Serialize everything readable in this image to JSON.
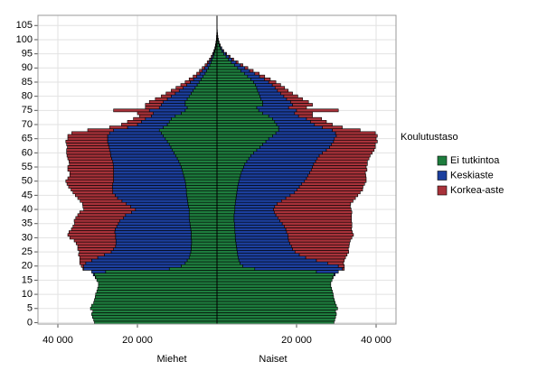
{
  "chart_data": {
    "type": "population_pyramid",
    "sides": {
      "left": "Miehet",
      "right": "Naiset"
    },
    "legend_title": "Koulutustaso",
    "legend": "right",
    "grid": true,
    "y": [
      0,
      1,
      2,
      3,
      4,
      5,
      6,
      7,
      8,
      9,
      10,
      11,
      12,
      13,
      14,
      15,
      16,
      17,
      18,
      19,
      20,
      21,
      22,
      23,
      24,
      25,
      26,
      27,
      28,
      29,
      30,
      31,
      32,
      33,
      34,
      35,
      36,
      37,
      38,
      39,
      40,
      41,
      42,
      43,
      44,
      45,
      46,
      47,
      48,
      49,
      50,
      51,
      52,
      53,
      54,
      55,
      56,
      57,
      58,
      59,
      60,
      61,
      62,
      63,
      64,
      65,
      66,
      67,
      68,
      69,
      70,
      71,
      72,
      73,
      74,
      75,
      76,
      77,
      78,
      79,
      80,
      81,
      82,
      83,
      84,
      85,
      86,
      87,
      88,
      89,
      90,
      91,
      92,
      93,
      94,
      95,
      96,
      97,
      98,
      99,
      100,
      101,
      102,
      103,
      104
    ],
    "ylim": [
      -0.5,
      108.6
    ],
    "yticks": [
      0,
      5,
      10,
      15,
      20,
      25,
      30,
      35,
      40,
      45,
      50,
      55,
      60,
      65,
      70,
      75,
      80,
      85,
      90,
      95,
      100,
      105
    ],
    "xlim": [
      -45000,
      45000
    ],
    "xticks": [
      {
        "value": -40000,
        "label": "40 000"
      },
      {
        "value": -20000,
        "label": "20 000"
      },
      {
        "value": 20000,
        "label": "20 000"
      },
      {
        "value": 40000,
        "label": "40 000"
      }
    ],
    "series": [
      {
        "name": "Ei tutkintoa",
        "color": "#1e7d3e",
        "left": [
          30800,
          31000,
          31300,
          31500,
          31200,
          31800,
          31500,
          31000,
          30800,
          30600,
          30500,
          30200,
          30000,
          29800,
          29800,
          30200,
          30500,
          30800,
          28000,
          12000,
          9000,
          8000,
          7500,
          7000,
          6800,
          6600,
          6500,
          6500,
          6400,
          6400,
          6500,
          6500,
          6500,
          6600,
          6700,
          6800,
          6900,
          7000,
          7000,
          7000,
          7000,
          7200,
          7300,
          7400,
          7500,
          7600,
          7700,
          7700,
          7800,
          7900,
          8000,
          8200,
          8400,
          8600,
          8800,
          9000,
          9300,
          9600,
          10000,
          10400,
          10800,
          11200,
          11600,
          12000,
          12500,
          13000,
          13500,
          14000,
          14500,
          13500,
          12500,
          12000,
          11500,
          10500,
          9000,
          8000,
          7500,
          8000,
          8000,
          7500,
          7000,
          6500,
          6000,
          5500,
          5000,
          4500,
          4000,
          3500,
          3000,
          2600,
          2200,
          1800,
          1500,
          1200,
          900,
          700,
          500,
          350,
          250,
          170,
          110,
          70,
          45,
          25,
          15
        ],
        "right": [
          29400,
          29600,
          29800,
          30000,
          29800,
          30300,
          30000,
          29700,
          29500,
          29300,
          29200,
          29000,
          28800,
          28600,
          28600,
          28900,
          29100,
          29400,
          25000,
          9500,
          6500,
          5800,
          5500,
          5300,
          5200,
          5100,
          5000,
          4900,
          4800,
          4700,
          4600,
          4600,
          4500,
          4500,
          4400,
          4400,
          4300,
          4300,
          4300,
          4400,
          4500,
          4500,
          4600,
          4700,
          4800,
          4900,
          5000,
          5100,
          5200,
          5300,
          5500,
          5700,
          5900,
          6100,
          6400,
          6700,
          7000,
          7500,
          8000,
          8500,
          9200,
          10000,
          10800,
          11500,
          12300,
          13000,
          14000,
          14800,
          15500,
          15500,
          15000,
          14500,
          14000,
          13000,
          11500,
          10500,
          10000,
          11500,
          11500,
          11000,
          10800,
          10500,
          10200,
          10000,
          9700,
          9200,
          8500,
          7700,
          6900,
          6000,
          5200,
          4400,
          3600,
          2900,
          2300,
          1700,
          1200,
          850,
          580,
          380,
          240,
          150,
          90,
          50,
          30
        ]
      },
      {
        "name": "Keskiaste",
        "color": "#1c3f9e",
        "left": [
          0,
          0,
          0,
          0,
          0,
          0,
          0,
          0,
          0,
          0,
          0,
          0,
          0,
          0,
          0,
          0,
          100,
          300,
          3500,
          21500,
          24500,
          25000,
          24000,
          23000,
          21500,
          20000,
          19500,
          19000,
          19000,
          19000,
          19000,
          19000,
          19200,
          19000,
          18500,
          18000,
          17500,
          16500,
          16000,
          14500,
          13500,
          14500,
          15500,
          16500,
          17500,
          18000,
          18500,
          18500,
          18500,
          18300,
          18000,
          17800,
          17600,
          17400,
          17200,
          17000,
          16800,
          16600,
          16500,
          16300,
          16000,
          15800,
          15500,
          15300,
          15000,
          14500,
          14000,
          13000,
          11500,
          9000,
          7500,
          7000,
          6500,
          6000,
          7000,
          9000,
          7000,
          6000,
          5500,
          5000,
          4500,
          4000,
          3500,
          3000,
          2600,
          2200,
          1900,
          1600,
          1300,
          1100,
          900,
          700,
          550,
          400,
          300,
          220,
          160,
          110,
          80,
          50,
          30,
          20,
          12,
          8,
          4
        ],
        "right": [
          0,
          0,
          0,
          0,
          0,
          0,
          0,
          0,
          0,
          0,
          0,
          0,
          0,
          0,
          0,
          0,
          100,
          300,
          5500,
          22000,
          24000,
          22000,
          19500,
          17000,
          15500,
          14500,
          14000,
          13800,
          13500,
          13300,
          13300,
          13200,
          13000,
          12800,
          12500,
          12000,
          11500,
          11000,
          10500,
          10000,
          9700,
          10000,
          10500,
          11500,
          12500,
          13500,
          14500,
          15000,
          15500,
          16000,
          16500,
          16800,
          17000,
          17200,
          17300,
          17300,
          17300,
          17300,
          17200,
          17200,
          17300,
          17500,
          17500,
          17300,
          17000,
          16500,
          16000,
          15000,
          13500,
          11000,
          9500,
          9000,
          8500,
          7500,
          8000,
          9500,
          8000,
          7500,
          7000,
          6500,
          6000,
          5500,
          5000,
          4600,
          4200,
          3800,
          3400,
          3000,
          2600,
          2200,
          1800,
          1500,
          1200,
          900,
          700,
          500,
          350,
          250,
          170,
          110,
          70,
          40,
          25,
          14,
          8
        ]
      },
      {
        "name": "Korkea-aste",
        "color": "#a8323a",
        "left": [
          0,
          0,
          0,
          0,
          0,
          0,
          0,
          0,
          0,
          0,
          0,
          0,
          0,
          0,
          0,
          0,
          0,
          0,
          0,
          200,
          600,
          1500,
          3000,
          4500,
          6500,
          8000,
          9000,
          9500,
          10000,
          10500,
          11500,
          12000,
          11500,
          11000,
          11000,
          11000,
          11500,
          12000,
          12000,
          13000,
          13000,
          12000,
          11000,
          10500,
          10000,
          10000,
          10000,
          10500,
          11000,
          11500,
          12000,
          11500,
          11000,
          11000,
          11500,
          11500,
          11000,
          11000,
          11000,
          11000,
          11000,
          10800,
          10500,
          10500,
          10500,
          10000,
          10000,
          9500,
          6500,
          4500,
          4000,
          3500,
          3000,
          3000,
          4000,
          9000,
          3500,
          4000,
          3500,
          3000,
          2500,
          2300,
          2000,
          1800,
          1500,
          1300,
          1100,
          900,
          800,
          700,
          600,
          500,
          400,
          300,
          250,
          180,
          130,
          90,
          60,
          40,
          25,
          15,
          10,
          5,
          3
        ],
        "right": [
          0,
          0,
          0,
          0,
          0,
          0,
          0,
          0,
          0,
          0,
          0,
          0,
          0,
          0,
          0,
          0,
          0,
          0,
          0,
          500,
          1500,
          4000,
          7000,
          10000,
          12000,
          13500,
          14000,
          14500,
          15000,
          15500,
          16000,
          16500,
          16500,
          16500,
          17000,
          17500,
          18000,
          18500,
          19000,
          19500,
          19500,
          19000,
          18500,
          18000,
          17500,
          17000,
          16500,
          16500,
          16000,
          15800,
          15500,
          15000,
          14500,
          14000,
          14000,
          13500,
          13500,
          13000,
          13000,
          12800,
          12500,
          12000,
          11500,
          11000,
          11000,
          10500,
          10300,
          10000,
          7000,
          5000,
          4500,
          4000,
          3800,
          3500,
          4500,
          10500,
          4500,
          5000,
          4500,
          4000,
          3500,
          3000,
          2700,
          2400,
          2100,
          1800,
          1500,
          1300,
          1100,
          900,
          750,
          600,
          500,
          400,
          300,
          220,
          160,
          110,
          75,
          50,
          30,
          18,
          10,
          6,
          3
        ]
      }
    ]
  }
}
